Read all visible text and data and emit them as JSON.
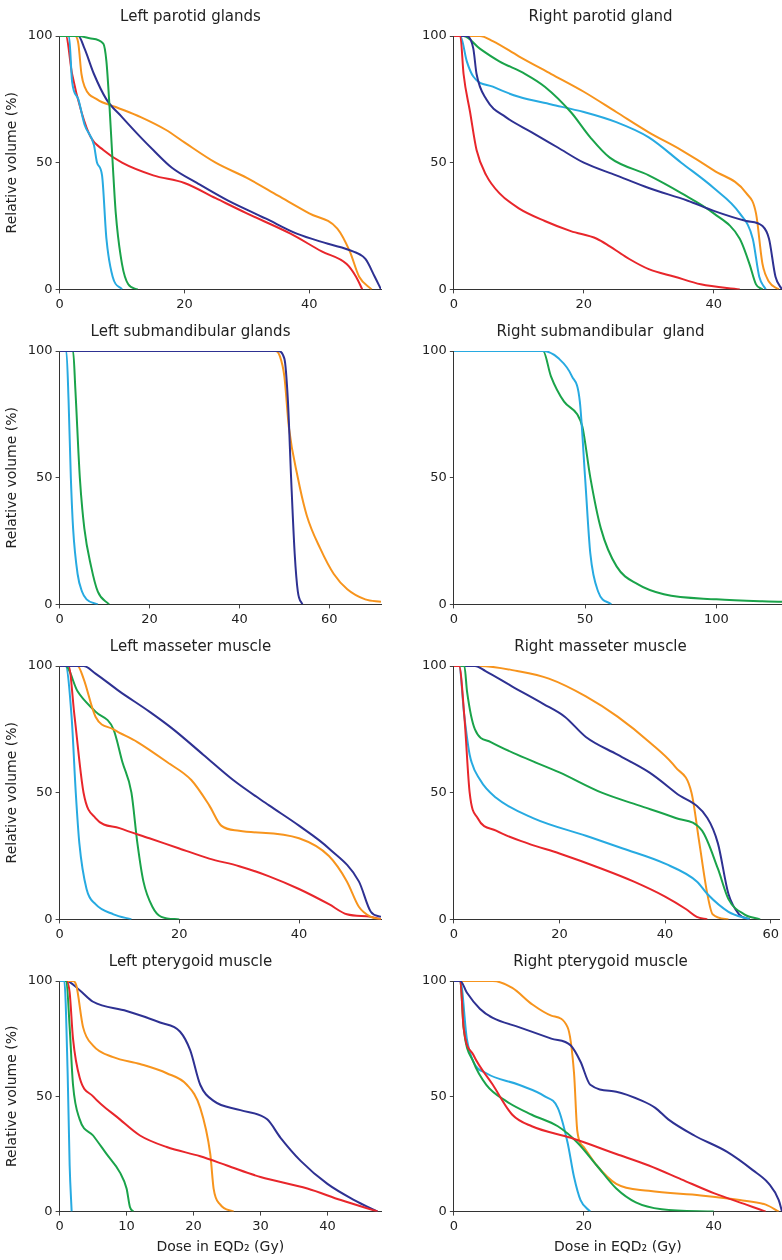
{
  "chart_data": [
    {
      "type": "line",
      "title": "Left parotid glands",
      "ylabel": "Relative volume (%)",
      "xlim": [
        0,
        51.5
      ],
      "xticks": [
        0,
        20,
        40
      ],
      "ylim": [
        0,
        100
      ],
      "yticks": [
        0,
        50,
        100
      ],
      "series": [
        {
          "color": "#1aa34a",
          "x": [
            0,
            3,
            5,
            7,
            7.5,
            8,
            8.5,
            9,
            10,
            11,
            12.5
          ],
          "values": [
            100,
            100,
            99,
            97,
            90,
            72,
            50,
            30,
            10,
            2,
            0
          ]
        },
        {
          "color": "#27aae1",
          "x": [
            0,
            1.5,
            2,
            3,
            4,
            5.5,
            6,
            6.8,
            7.5,
            8.5,
            10
          ],
          "values": [
            100,
            100,
            82,
            75,
            65,
            57,
            50,
            45,
            20,
            5,
            0
          ]
        },
        {
          "color": "#e8262b",
          "x": [
            0,
            1,
            2,
            3.5,
            5,
            7,
            10,
            15,
            20,
            25,
            30,
            37,
            42,
            46,
            47.5,
            48.5
          ],
          "values": [
            100,
            100,
            85,
            70,
            60,
            55,
            50,
            45,
            42,
            36,
            30,
            22,
            15,
            10,
            5,
            0
          ]
        },
        {
          "color": "#2e3192",
          "x": [
            0,
            3,
            4,
            5.5,
            7.5,
            10,
            13,
            15,
            18,
            22,
            27,
            33,
            38,
            43,
            47,
            49,
            50.5,
            51.5
          ],
          "values": [
            100,
            100,
            95,
            85,
            75,
            68,
            60,
            55,
            48,
            42,
            35,
            28,
            22,
            18,
            15,
            12,
            5,
            0
          ]
        },
        {
          "color": "#f7941d",
          "x": [
            0,
            2.5,
            3,
            3.5,
            4,
            6,
            9,
            13,
            17,
            20,
            25,
            30,
            35,
            40,
            44.5,
            46.5,
            48,
            50
          ],
          "values": [
            100,
            100,
            97,
            85,
            80,
            75,
            72,
            68,
            63,
            58,
            50,
            44,
            37,
            30,
            24,
            15,
            5,
            0
          ]
        }
      ]
    },
    {
      "type": "line",
      "title": "Right parotid gland",
      "xlim": [
        0,
        50.5
      ],
      "xticks": [
        0,
        20,
        40
      ],
      "ylim": [
        0,
        100
      ],
      "yticks": [
        0,
        50,
        100
      ],
      "series": [
        {
          "color": "#e8262b",
          "x": [
            0,
            1,
            1.5,
            2.5,
            3.5,
            5,
            7,
            10,
            14,
            18,
            22,
            24,
            27,
            30,
            34,
            38,
            44
          ],
          "values": [
            100,
            100,
            85,
            70,
            55,
            45,
            38,
            32,
            27,
            23,
            20,
            17,
            12,
            8,
            5,
            2,
            0
          ]
        },
        {
          "color": "#2e3192",
          "x": [
            0,
            2,
            3,
            3.5,
            5,
            8,
            12,
            16,
            20,
            25,
            30,
            36,
            40,
            45,
            47.5,
            48.5,
            49.5,
            50.5
          ],
          "values": [
            100,
            100,
            95,
            85,
            75,
            68,
            62,
            56,
            50,
            45,
            40,
            35,
            31,
            27,
            25,
            20,
            5,
            0
          ]
        },
        {
          "color": "#1aa34a",
          "x": [
            0,
            1.5,
            4,
            7,
            11,
            14,
            18,
            21,
            24,
            30,
            35,
            40,
            44,
            45.5,
            46.5,
            47.5
          ],
          "values": [
            100,
            100,
            95,
            90,
            85,
            80,
            70,
            60,
            52,
            45,
            38,
            30,
            20,
            10,
            2,
            0
          ]
        },
        {
          "color": "#27aae1",
          "x": [
            0,
            1,
            2,
            3,
            6,
            10,
            15,
            20,
            25,
            30,
            35,
            40,
            44,
            46,
            47,
            48
          ],
          "values": [
            100,
            100,
            90,
            84,
            80,
            76,
            73,
            70,
            66,
            60,
            50,
            40,
            30,
            20,
            5,
            0
          ]
        },
        {
          "color": "#f7941d",
          "x": [
            0,
            4,
            6,
            10,
            15,
            20,
            25,
            30,
            35,
            40,
            45,
            46.5,
            47.5,
            48.5,
            50
          ],
          "values": [
            100,
            100,
            98,
            92,
            85,
            78,
            70,
            62,
            55,
            47,
            38,
            30,
            10,
            3,
            0
          ]
        }
      ]
    },
    {
      "type": "line",
      "title": "Left submandibular glands",
      "ylabel": "Relative volume (%)",
      "xlim": [
        0,
        71.5
      ],
      "xticks": [
        0,
        20,
        40,
        60
      ],
      "ylim": [
        0,
        100
      ],
      "yticks": [
        0,
        50,
        100
      ],
      "series": [
        {
          "color": "#2e3192",
          "x": [
            0,
            48.5,
            50,
            50.8,
            51.5,
            52.3,
            53,
            54
          ],
          "values": [
            100,
            100,
            97,
            80,
            50,
            20,
            5,
            0
          ]
        },
        {
          "color": "#f7941d",
          "x": [
            0,
            48,
            49,
            50,
            51,
            53,
            55,
            58,
            61,
            64,
            68,
            71.5
          ],
          "values": [
            100,
            100,
            98,
            90,
            70,
            50,
            35,
            22,
            12,
            6,
            2,
            1
          ]
        },
        {
          "color": "#1aa34a",
          "x": [
            0,
            3,
            3.5,
            4.5,
            5.5,
            7,
            8.5,
            11
          ],
          "values": [
            100,
            100,
            85,
            50,
            30,
            15,
            5,
            0
          ]
        },
        {
          "color": "#27aae1",
          "x": [
            0,
            1.5,
            2,
            2.5,
            3,
            4,
            5,
            6,
            8.5
          ],
          "values": [
            100,
            100,
            80,
            50,
            30,
            12,
            5,
            2,
            0
          ]
        }
      ]
    },
    {
      "type": "line",
      "title": "Right submandibular  gland",
      "xlim": [
        0,
        125
      ],
      "xticks": [
        0,
        50,
        100
      ],
      "ylim": [
        0,
        100
      ],
      "yticks": [
        0,
        50,
        100
      ],
      "series": [
        {
          "color": "#27aae1",
          "x": [
            0,
            34,
            40,
            45,
            48,
            50,
            52,
            55,
            60
          ],
          "values": [
            100,
            100,
            97,
            90,
            80,
            50,
            20,
            5,
            0
          ]
        },
        {
          "color": "#1aa34a",
          "x": [
            0,
            34,
            37,
            42,
            47,
            49,
            52,
            56,
            62,
            70,
            80,
            100,
            125
          ],
          "values": [
            100,
            100,
            90,
            80,
            75,
            70,
            50,
            30,
            15,
            8,
            4,
            2,
            1
          ]
        }
      ]
    },
    {
      "type": "line",
      "title": "Left masseter muscle",
      "ylabel": "Relative volume (%)",
      "xlim": [
        0,
        53.7
      ],
      "xticks": [
        0,
        20,
        40
      ],
      "ylim": [
        0,
        100
      ],
      "yticks": [
        0,
        50,
        100
      ],
      "series": [
        {
          "color": "#2e3192",
          "x": [
            0,
            4,
            6,
            10,
            15,
            19,
            24,
            29,
            35,
            40,
            45,
            50,
            52,
            53.7
          ],
          "values": [
            100,
            100,
            97,
            90,
            82,
            75,
            65,
            55,
            45,
            37,
            28,
            15,
            3,
            1
          ]
        },
        {
          "color": "#f7941d",
          "x": [
            0,
            3,
            4,
            6,
            9,
            13,
            18,
            22,
            25,
            27,
            30,
            40,
            45,
            48,
            50,
            52,
            53.7
          ],
          "values": [
            100,
            100,
            95,
            80,
            75,
            70,
            62,
            55,
            45,
            37,
            35,
            32,
            25,
            15,
            5,
            1,
            0
          ]
        },
        {
          "color": "#e8262b",
          "x": [
            0,
            1.5,
            2.5,
            4,
            6,
            10,
            15,
            20,
            25,
            30,
            35,
            40,
            45,
            48,
            52,
            53.7
          ],
          "values": [
            100,
            100,
            80,
            50,
            40,
            36,
            32,
            28,
            24,
            21,
            17,
            12,
            6,
            2,
            1,
            0
          ]
        },
        {
          "color": "#1aa34a",
          "x": [
            0,
            1,
            3,
            6,
            9,
            10.5,
            12,
            13,
            14,
            15.5,
            17,
            20
          ],
          "values": [
            100,
            100,
            90,
            82,
            75,
            62,
            50,
            30,
            15,
            5,
            1,
            0
          ]
        },
        {
          "color": "#27aae1",
          "x": [
            0,
            1,
            2,
            2.7,
            3.3,
            4.5,
            6,
            9,
            12
          ],
          "values": [
            100,
            100,
            80,
            50,
            30,
            12,
            6,
            2,
            0
          ]
        }
      ]
    },
    {
      "type": "line",
      "title": "Right masseter muscle",
      "xlim": [
        0,
        61.6
      ],
      "xticks": [
        0,
        20,
        40,
        60
      ],
      "ylim": [
        0,
        100
      ],
      "yticks": [
        0,
        50,
        100
      ],
      "series": [
        {
          "color": "#e8262b",
          "x": [
            0,
            1,
            2,
            3,
            4.5,
            8,
            14,
            20,
            28,
            34,
            40,
            44,
            46,
            48
          ],
          "values": [
            100,
            100,
            80,
            50,
            40,
            35,
            30,
            26,
            20,
            15,
            9,
            4,
            1,
            0
          ]
        },
        {
          "color": "#27aae1",
          "x": [
            0,
            1,
            2,
            3,
            5,
            8,
            15,
            25,
            32,
            40,
            46,
            48,
            52,
            56
          ],
          "values": [
            100,
            100,
            80,
            65,
            55,
            48,
            40,
            33,
            28,
            22,
            15,
            10,
            3,
            0
          ]
        },
        {
          "color": "#1aa34a",
          "x": [
            0,
            2,
            2.5,
            4,
            7,
            12,
            20,
            28,
            35,
            42,
            47,
            50,
            52,
            55,
            58
          ],
          "values": [
            100,
            100,
            90,
            75,
            70,
            65,
            58,
            50,
            45,
            40,
            35,
            20,
            8,
            2,
            0
          ]
        },
        {
          "color": "#2e3192",
          "x": [
            0,
            4,
            6,
            11,
            17,
            21,
            25,
            31,
            37,
            42,
            48,
            50,
            52,
            54,
            56
          ],
          "values": [
            100,
            100,
            98,
            92,
            85,
            80,
            72,
            65,
            58,
            50,
            40,
            30,
            10,
            2,
            0
          ]
        },
        {
          "color": "#f7941d",
          "x": [
            0,
            5,
            12,
            18,
            25,
            31,
            37,
            42,
            45,
            46.5,
            48,
            49,
            52
          ],
          "values": [
            100,
            100,
            98,
            95,
            88,
            80,
            70,
            60,
            50,
            30,
            10,
            2,
            0
          ]
        }
      ]
    },
    {
      "type": "line",
      "title": "Left pterygoid muscle",
      "ylabel": "Relative volume (%)",
      "xlabel": "Dose in EQD₂ (Gy)",
      "xlim": [
        0,
        48
      ],
      "xticks": [
        0,
        10,
        20,
        30,
        40
      ],
      "ylim": [
        0,
        100
      ],
      "yticks": [
        0,
        50,
        100
      ],
      "series": [
        {
          "color": "#27aae1",
          "x": [
            0,
            0.7,
            1.2,
            1.5,
            1.8
          ],
          "values": [
            100,
            100,
            60,
            20,
            0
          ]
        },
        {
          "color": "#1aa34a",
          "x": [
            0,
            1,
            1.5,
            2,
            3,
            5,
            7,
            9,
            10,
            10.5,
            11
          ],
          "values": [
            100,
            100,
            80,
            55,
            40,
            33,
            25,
            17,
            10,
            2,
            0
          ]
        },
        {
          "color": "#e8262b",
          "x": [
            0,
            1,
            1.5,
            2,
            3,
            5,
            9,
            12,
            16,
            21,
            25,
            30,
            37,
            42,
            47.5
          ],
          "values": [
            100,
            100,
            95,
            75,
            58,
            50,
            40,
            33,
            28,
            24,
            20,
            15,
            10,
            5,
            0
          ]
        },
        {
          "color": "#f7941d",
          "x": [
            0,
            2,
            2.5,
            3.5,
            5,
            8,
            12,
            16,
            19,
            21,
            22.5,
            23,
            24,
            26
          ],
          "values": [
            100,
            100,
            98,
            80,
            72,
            67,
            64,
            60,
            55,
            45,
            25,
            10,
            3,
            0
          ]
        },
        {
          "color": "#2e3192",
          "x": [
            0,
            1,
            3,
            5,
            10,
            15,
            18,
            19.5,
            21,
            23,
            27,
            31,
            33,
            36,
            40,
            44,
            47.5
          ],
          "values": [
            100,
            100,
            96,
            91,
            87,
            82,
            78,
            70,
            55,
            48,
            44,
            40,
            32,
            22,
            12,
            5,
            0
          ]
        }
      ]
    },
    {
      "type": "line",
      "title": "Right pterygoid muscle",
      "xlabel": "Dose in EQD₂ (Gy)",
      "xlim": [
        0,
        50.5
      ],
      "xticks": [
        0,
        20,
        40
      ],
      "ylim": [
        0,
        100
      ],
      "yticks": [
        0,
        50,
        100
      ],
      "series": [
        {
          "color": "#2e3192",
          "x": [
            0,
            1,
            2,
            4,
            6,
            10,
            15,
            18,
            19.5,
            21,
            25,
            29,
            31,
            33,
            37,
            42,
            46,
            48.5,
            50,
            50.5
          ],
          "values": [
            100,
            100,
            95,
            88,
            84,
            80,
            75,
            72,
            65,
            55,
            52,
            48,
            45,
            40,
            33,
            26,
            18,
            12,
            5,
            0
          ]
        },
        {
          "color": "#e8262b",
          "x": [
            0,
            1,
            1.5,
            3,
            6,
            9,
            12,
            18,
            25,
            30,
            35,
            40,
            45,
            47,
            48
          ],
          "values": [
            100,
            100,
            80,
            68,
            55,
            42,
            37,
            32,
            25,
            20,
            14,
            8,
            3,
            1,
            0
          ]
        },
        {
          "color": "#1aa34a",
          "x": [
            0,
            1,
            1.5,
            3,
            5,
            8,
            12,
            16,
            19,
            22,
            25,
            28,
            32,
            40
          ],
          "values": [
            100,
            100,
            80,
            65,
            55,
            48,
            42,
            37,
            30,
            20,
            10,
            4,
            1,
            0
          ]
        },
        {
          "color": "#27aae1",
          "x": [
            0,
            1,
            2,
            3,
            5,
            10,
            14,
            16,
            17.5,
            18.5,
            19.5,
            21
          ],
          "values": [
            100,
            100,
            75,
            65,
            60,
            55,
            50,
            45,
            30,
            15,
            5,
            0
          ]
        },
        {
          "color": "#f7941d",
          "x": [
            0,
            6,
            9,
            12,
            15,
            17.5,
            18.5,
            19,
            20,
            22,
            25,
            30,
            38,
            44,
            48,
            50
          ],
          "values": [
            100,
            100,
            97,
            90,
            85,
            80,
            60,
            35,
            28,
            20,
            12,
            9,
            7,
            5,
            3,
            0
          ]
        }
      ]
    }
  ]
}
